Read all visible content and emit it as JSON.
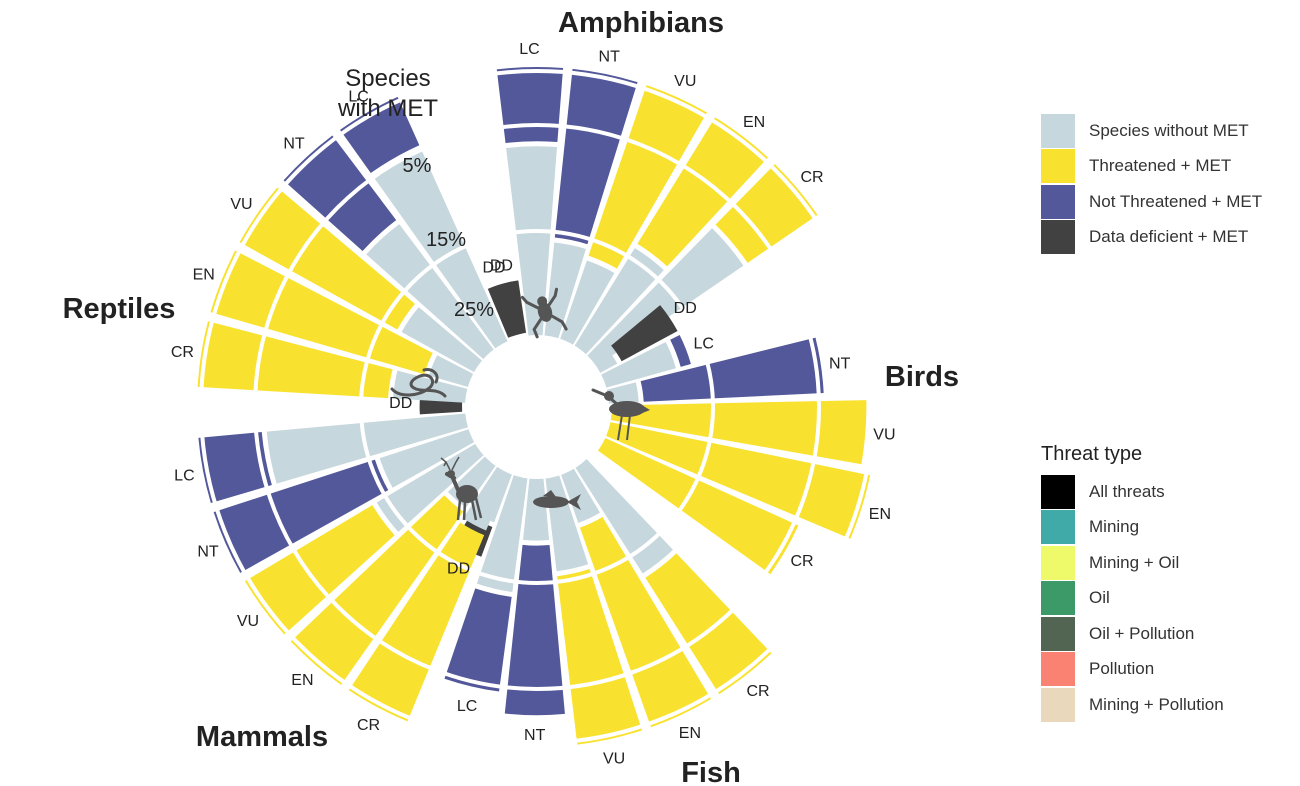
{
  "chart_data": {
    "type": "radial-stacked-bar",
    "categories": [
      "CR",
      "EN",
      "VU",
      "NT",
      "LC",
      "DD"
    ],
    "groups": [
      {
        "name": "Amphibians",
        "icon": "frog-icon",
        "order": [
          "DD",
          "LC",
          "NT",
          "VU",
          "EN",
          "CR"
        ],
        "values": {
          "DD": {
            "met": 5,
            "total": 5
          },
          "LC": {
            "met": 7,
            "total": 25
          },
          "NT": {
            "met": 16,
            "total": 25
          },
          "VU": {
            "met": 17,
            "total": 25
          },
          "EN": {
            "met": 14,
            "total": 25
          },
          "CR": {
            "met": 8,
            "total": 25
          }
        }
      },
      {
        "name": "Birds",
        "icon": "bird-icon",
        "order": [
          "DD",
          "LC",
          "NT",
          "VU",
          "EN",
          "CR"
        ],
        "values": {
          "DD": {
            "met": 6,
            "total": 8
          },
          "LC": {
            "met": 1,
            "total": 8
          },
          "NT": {
            "met": 17,
            "total": 20
          },
          "VU": {
            "met": 24,
            "total": 24
          },
          "EN": {
            "met": 25,
            "total": 25
          },
          "CR": {
            "met": 20,
            "total": 20
          }
        }
      },
      {
        "name": "Fish",
        "icon": "fish-icon",
        "order": [
          "DD",
          "LC",
          "NT",
          "VU",
          "EN",
          "CR"
        ],
        "values": {
          "DD": {
            "met": 3,
            "total": 8
          },
          "LC": {
            "met": 9,
            "total": 20
          },
          "NT": {
            "met": 16,
            "total": 22
          },
          "VU": {
            "met": 16,
            "total": 25
          },
          "EN": {
            "met": 20,
            "total": 25
          },
          "CR": {
            "met": 13,
            "total": 25
          }
        }
      },
      {
        "name": "Mammals",
        "icon": "deer-icon",
        "order": [
          "DD",
          "LC",
          "NT",
          "VU",
          "EN",
          "CR"
        ],
        "values": {
          "DD": {
            "met": 4,
            "total": 4
          },
          "LC": {
            "met": 6,
            "total": 25
          },
          "NT": {
            "met": 16,
            "total": 25
          },
          "VU": {
            "met": 14,
            "total": 25
          },
          "EN": {
            "met": 20,
            "total": 25
          },
          "CR": {
            "met": 19,
            "total": 25
          }
        }
      },
      {
        "name": "Reptiles",
        "icon": "snake-icon",
        "order": [
          "DD",
          "LC",
          "NT",
          "VU",
          "EN",
          "CR"
        ],
        "values": {
          "DD": {
            "met": 5,
            "total": 5
          },
          "LC": {
            "met": 5,
            "total": 25
          },
          "NT": {
            "met": 10,
            "total": 25
          },
          "VU": {
            "met": 17,
            "total": 25
          },
          "EN": {
            "met": 21,
            "total": 25
          },
          "CR": {
            "met": 18,
            "total": 25
          }
        }
      }
    ],
    "radial_axis": {
      "title": "Species\nwith MET",
      "ticks": [
        "5%",
        "15%",
        "25%"
      ],
      "tick_values": [
        5,
        15,
        25
      ],
      "max": 25
    },
    "colors": {
      "without": "#c6d7de",
      "threatened": "#f9e22f",
      "not_threatened": "#53589a",
      "data_deficient": "#414142"
    }
  },
  "legend_status": {
    "items": [
      {
        "label": "Species without MET",
        "color": "#c6d7de"
      },
      {
        "label": "Threatened + MET",
        "color": "#f9e22f"
      },
      {
        "label": "Not Threatened + MET",
        "color": "#53589a"
      },
      {
        "label": "Data deficient + MET",
        "color": "#414142"
      }
    ]
  },
  "legend_threat": {
    "title": "Threat type",
    "items": [
      {
        "label": "All threats",
        "color": "#000000"
      },
      {
        "label": "Mining",
        "color": "#40aaa9"
      },
      {
        "label": "Mining + Oil",
        "color": "#eefa6a"
      },
      {
        "label": "Oil",
        "color": "#3c9a68"
      },
      {
        "label": "Oil + Pollution",
        "color": "#526552"
      },
      {
        "label": "Pollution",
        "color": "#f98272"
      },
      {
        "label": "Mining + Pollution",
        "color": "#ead8bd"
      }
    ]
  }
}
